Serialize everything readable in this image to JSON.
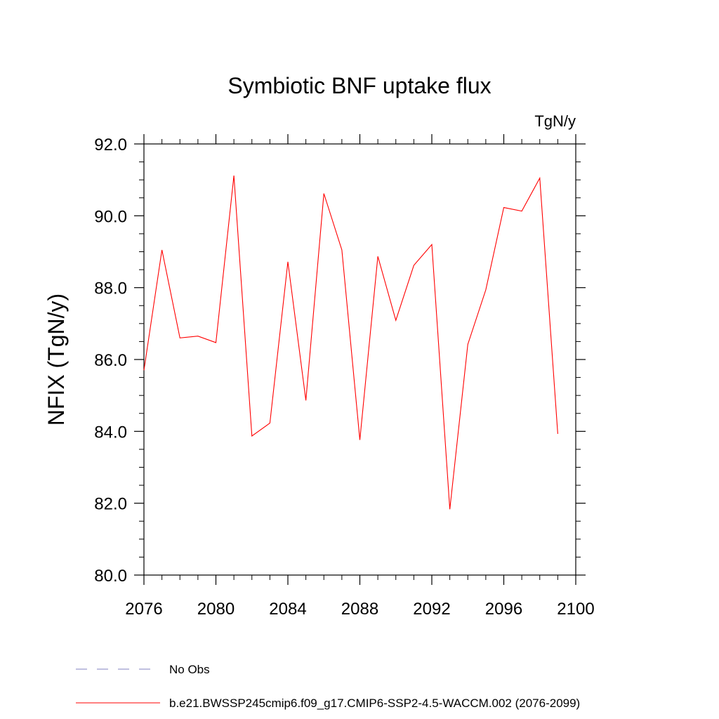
{
  "chart_data": {
    "type": "line",
    "title": "Symbiotic BNF uptake flux",
    "units": "TgN/y",
    "xlabel": "",
    "ylabel": "NFIX  (TgN/y)",
    "xlim": [
      2076,
      2100
    ],
    "ylim": [
      80.0,
      92.0
    ],
    "xticks": [
      2076,
      2080,
      2084,
      2088,
      2092,
      2096,
      2100
    ],
    "xtick_labels": [
      "2076",
      "2080",
      "2084",
      "2088",
      "2092",
      "2096",
      "2100"
    ],
    "yticks": [
      80.0,
      82.0,
      84.0,
      86.0,
      88.0,
      90.0,
      92.0
    ],
    "ytick_labels": [
      "80.0",
      "82.0",
      "84.0",
      "86.0",
      "88.0",
      "90.0",
      "92.0"
    ],
    "grid": false,
    "legend_position": "bottom",
    "series": [
      {
        "name": "b.e21.BWSSP245cmip6.f09_g17.CMIP6-SSP2-4.5-WACCM.002 (2076-2099)",
        "color": "#ff0000",
        "style": "solid",
        "x": [
          2076,
          2077,
          2078,
          2079,
          2080,
          2081,
          2082,
          2083,
          2084,
          2085,
          2086,
          2087,
          2088,
          2089,
          2090,
          2091,
          2092,
          2093,
          2094,
          2095,
          2096,
          2097,
          2098,
          2099
        ],
        "values": [
          85.7,
          89.05,
          86.6,
          86.65,
          86.47,
          91.12,
          83.87,
          84.23,
          88.72,
          84.86,
          90.62,
          89.05,
          83.76,
          88.87,
          87.09,
          88.62,
          89.2,
          81.83,
          86.42,
          87.94,
          90.23,
          90.13,
          91.05,
          83.93
        ]
      }
    ],
    "legend": [
      {
        "label": "No Obs",
        "color": "#8080c0",
        "style": "dashed"
      },
      {
        "label": "b.e21.BWSSP245cmip6.f09_g17.CMIP6-SSP2-4.5-WACCM.002 (2076-2099)",
        "color": "#ff0000",
        "style": "solid"
      }
    ]
  }
}
